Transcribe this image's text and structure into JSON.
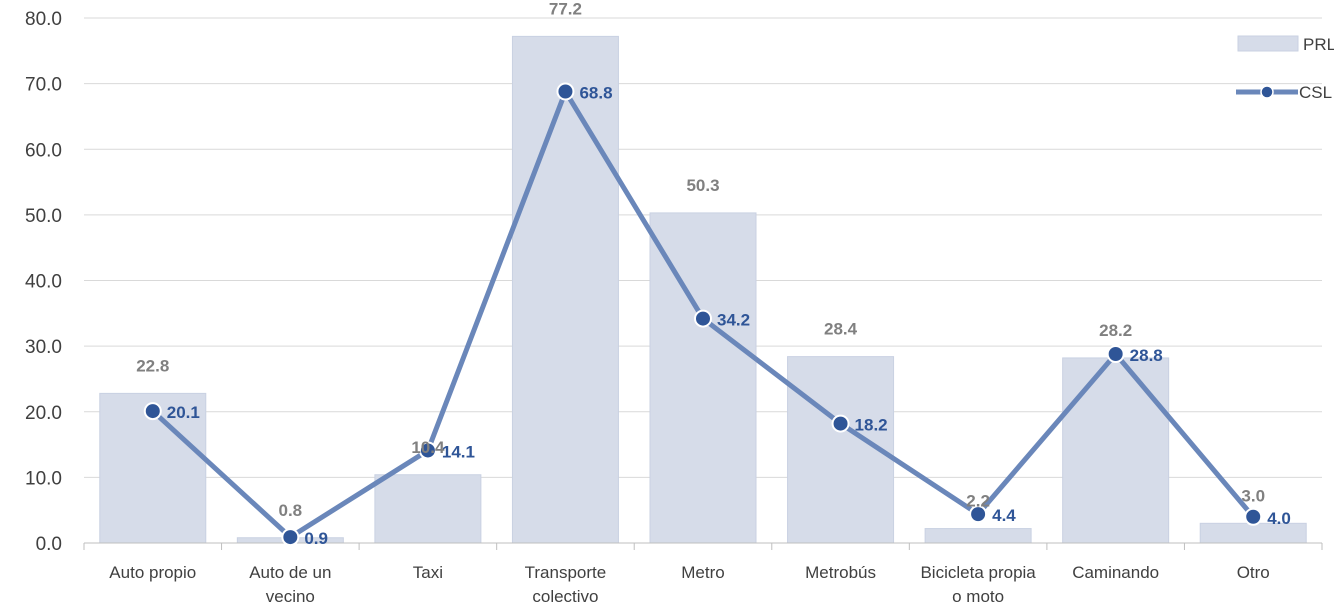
{
  "chart_data": {
    "type": "bar",
    "categories": [
      [
        "Auto propio"
      ],
      [
        "Auto de un",
        "vecino"
      ],
      [
        "Taxi"
      ],
      [
        "Transporte",
        "colectivo"
      ],
      [
        "Metro"
      ],
      [
        "Metrobús"
      ],
      [
        "Bicicleta propia",
        "o moto"
      ],
      [
        "Caminando"
      ],
      [
        "Otro"
      ]
    ],
    "series": [
      {
        "name": "PRL",
        "type": "bar",
        "values": [
          22.8,
          0.8,
          10.4,
          77.2,
          50.3,
          28.4,
          2.2,
          28.2,
          3.0
        ],
        "labels": [
          "22.8",
          "0.8",
          "10.4",
          "77.2",
          "50.3",
          "28.4",
          "2.2",
          "28.2",
          "3.0"
        ],
        "color": "#D6DCE9"
      },
      {
        "name": "CSL",
        "type": "line",
        "values": [
          20.1,
          0.9,
          14.1,
          68.8,
          34.2,
          18.2,
          4.4,
          28.8,
          4.0
        ],
        "labels": [
          "20.1",
          "0.9",
          "14.1",
          "68.8",
          "34.2",
          "18.2",
          "4.4",
          "28.8",
          "4.0"
        ],
        "color": "#6A87BA",
        "marker_color": "#2F5597"
      }
    ],
    "yticks": [
      "0.0",
      "10.0",
      "20.0",
      "30.0",
      "40.0",
      "50.0",
      "60.0",
      "70.0",
      "80.0"
    ],
    "ylim": [
      0,
      80
    ],
    "grid": true,
    "legend_position": "top-right"
  }
}
